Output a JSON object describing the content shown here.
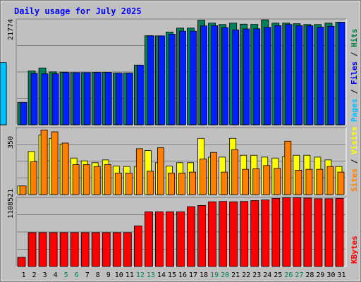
{
  "chart_data": {
    "type": "bar",
    "title": "Daily usage for July 2025",
    "categories": [
      "1",
      "2",
      "3",
      "4",
      "5",
      "6",
      "7",
      "8",
      "9",
      "10",
      "11",
      "12",
      "13",
      "14",
      "15",
      "16",
      "17",
      "18",
      "19",
      "20",
      "21",
      "22",
      "23",
      "24",
      "25",
      "26",
      "27",
      "28",
      "29",
      "30",
      "31"
    ],
    "weekend_days": [
      "5",
      "6",
      "12",
      "13",
      "19",
      "20",
      "26",
      "27"
    ],
    "panels": [
      {
        "name": "hits-files-pages",
        "ymax_label": "21774",
        "ymax": 21774,
        "ylabel_parts": [
          {
            "text": "Pages",
            "color": "#00c0ff"
          },
          {
            "text": " / ",
            "color": "#000000"
          },
          {
            "text": "Files",
            "color": "#0000ff"
          },
          {
            "text": " / ",
            "color": "#000000"
          },
          {
            "text": "Hits",
            "color": "#008040"
          }
        ],
        "series": [
          {
            "name": "Hits",
            "color": "#00805c",
            "values": [
              4670,
              11220,
              11850,
              11050,
              11000,
              10890,
              10890,
              10940,
              10940,
              10780,
              10780,
              12460,
              18580,
              18560,
              19360,
              20180,
              20180,
              21810,
              21220,
              20920,
              21220,
              21000,
              20940,
              21900,
              21220,
              21220,
              21090,
              20920,
              20920,
              21220,
              21400
            ]
          },
          {
            "name": "Files",
            "color": "#0020ff",
            "values": [
              4670,
              10710,
              10640,
              10640,
              10910,
              10890,
              10890,
              10940,
              10940,
              10780,
              10780,
              12460,
              18580,
              18560,
              18900,
              19540,
              19540,
              20640,
              20680,
              20290,
              19790,
              20000,
              20030,
              20340,
              20690,
              20930,
              20690,
              20670,
              20380,
              20560,
              21400
            ]
          },
          {
            "name": "Pages",
            "color": "#00c0ff",
            "values": [
              3550,
              7710,
              7790,
              7790,
              7710,
              7650,
              7650,
              7680,
              7680,
              7680,
              7680,
              8220,
              10940,
              10940,
              10940,
              11050,
              11050,
              11290,
              12580,
              12550,
              12580,
              12580,
              12580,
              12580,
              12550,
              12550,
              12550,
              12390,
              12390,
              12390,
              12990
            ]
          }
        ]
      },
      {
        "name": "visits-sites",
        "ymax_label": "350",
        "ymax": 350,
        "ylabel_parts": [
          {
            "text": "Sites",
            "color": "#ff8000"
          },
          {
            "text": " / ",
            "color": "#000000"
          },
          {
            "text": "Visits",
            "color": "#ffff00"
          }
        ],
        "series": [
          {
            "name": "Visits",
            "color": "#ffff00",
            "values": [
              46,
              230,
              318,
              300,
              270,
              195,
              180,
              170,
              185,
              152,
              150,
              150,
              235,
              170,
              152,
              170,
              170,
              300,
              200,
              200,
              300,
              210,
              210,
              200,
              195,
              205,
              210,
              210,
              200,
              185,
              150
            ]
          },
          {
            "name": "Sites",
            "color": "#ff8000",
            "values": [
              46,
              175,
              345,
              335,
              275,
              160,
              160,
              150,
              160,
              115,
              115,
              245,
              125,
              250,
              115,
              115,
              120,
              190,
              225,
              120,
              240,
              135,
              138,
              155,
              140,
              285,
              130,
              135,
              135,
              150,
              120
            ]
          }
        ]
      },
      {
        "name": "kbytes",
        "ymax_label": "1108521",
        "ymax": 1108521,
        "ylabel_parts": [
          {
            "text": "KBytes",
            "color": "#ff0000"
          }
        ],
        "series": [
          {
            "name": "KBytes",
            "color": "#ff0000",
            "values": [
              150000,
              555000,
              555000,
              555000,
              555000,
              555000,
              555000,
              555000,
              555000,
              555000,
              555000,
              665000,
              895000,
              895000,
              895000,
              895000,
              980000,
              1000000,
              1060000,
              1065000,
              1060000,
              1065000,
              1080000,
              1090000,
              1115000,
              1125000,
              1125000,
              1120000,
              1110000,
              1110000,
              1115000
            ]
          }
        ]
      }
    ]
  }
}
